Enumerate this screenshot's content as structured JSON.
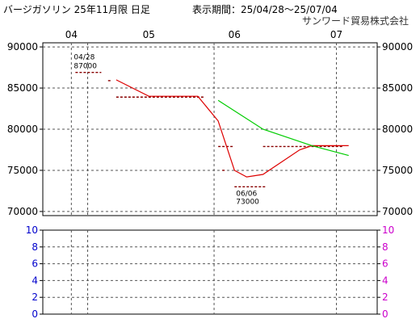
{
  "header": {
    "title": "バージガソリン 25年11月限 日足",
    "period_label": "表示期間：25/04/28～25/07/04",
    "publisher": "サンワード貿易株式会社"
  },
  "chart_data": [
    {
      "type": "line",
      "x_ticks": [
        "04",
        "05",
        "06",
        "07"
      ],
      "ylim": [
        69500,
        90500
      ],
      "y_ticks": [
        70000,
        75000,
        80000,
        85000,
        90000
      ],
      "grid": true,
      "price_bars": [
        {
          "x": "04/28",
          "y": 86900,
          "w": 32
        },
        {
          "x": "05/06",
          "y": 85900,
          "w": 4
        },
        {
          "x": "05/08",
          "y": 83900,
          "w": 110
        },
        {
          "x": "06/02",
          "y": 77900,
          "w": 18
        },
        {
          "x": "06/03",
          "y": 75000,
          "w": 4
        },
        {
          "x": "06/06",
          "y": 73000,
          "w": 40
        },
        {
          "x": "06/13",
          "y": 77900,
          "w": 100
        }
      ],
      "series": [
        {
          "color": "#dd0000",
          "points": [
            {
              "x": "05/08",
              "y": 86000
            },
            {
              "x": "05/16",
              "y": 84000
            },
            {
              "x": "05/28",
              "y": 84000
            },
            {
              "x": "06/02",
              "y": 81000
            },
            {
              "x": "06/06",
              "y": 75000
            },
            {
              "x": "06/09",
              "y": 74200
            },
            {
              "x": "06/13",
              "y": 74500
            },
            {
              "x": "06/22",
              "y": 77500
            },
            {
              "x": "06/25",
              "y": 78000
            },
            {
              "x": "07/04",
              "y": 78000
            }
          ]
        },
        {
          "color": "#00cc00",
          "points": [
            {
              "x": "06/02",
              "y": 83500
            },
            {
              "x": "06/13",
              "y": 80000
            },
            {
              "x": "06/25",
              "y": 78000
            },
            {
              "x": "07/04",
              "y": 76800
            }
          ]
        }
      ],
      "annotations": [
        {
          "date": "04/28",
          "value": "87000"
        },
        {
          "date": "06/06",
          "value": "73000"
        }
      ]
    },
    {
      "type": "bar",
      "ylim": [
        0,
        10
      ],
      "y_ticks_left": [
        0,
        2,
        4,
        6,
        8,
        10
      ],
      "y_ticks_right": [
        0,
        2,
        4,
        6,
        8,
        10
      ],
      "grid": true,
      "values": []
    }
  ]
}
